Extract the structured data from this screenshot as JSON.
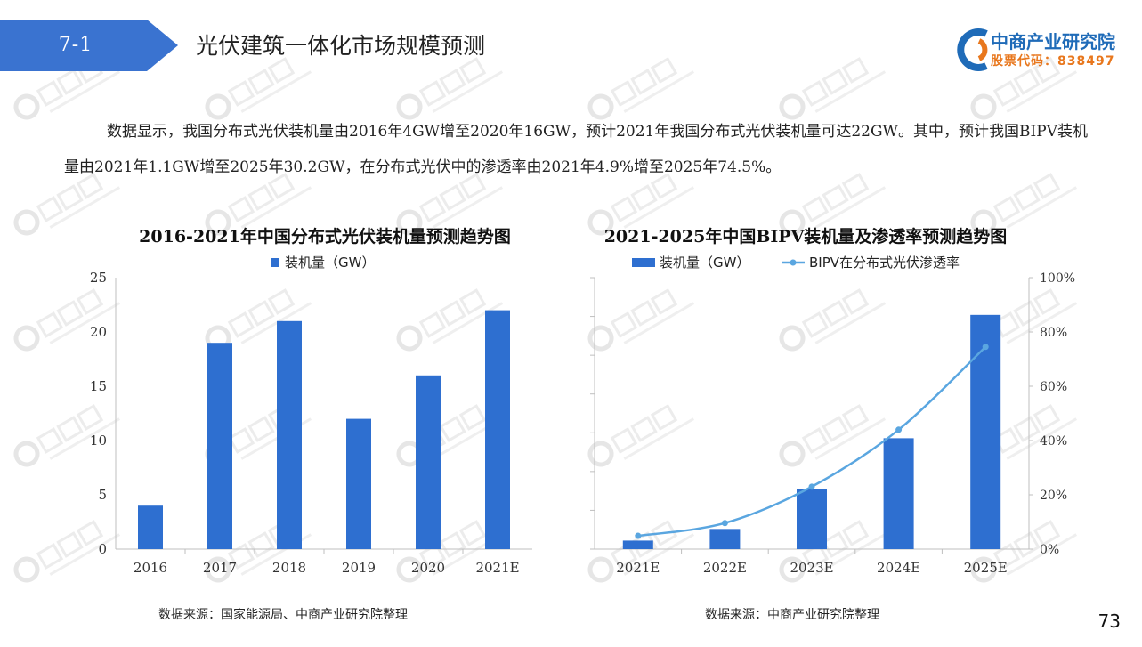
{
  "header": {
    "section_number": "7-1",
    "title": "光伏建筑一体化市场规模预测"
  },
  "logo": {
    "name": "中商产业研究院",
    "stock_code": "股票代码：838497"
  },
  "intro_text": "数据显示，我国分布式光伏装机量由2016年4GW增至2020年16GW，预计2021年我国分布式光伏装机量可达22GW。其中，预计我国BIPV装机量由2021年1.1GW增至2025年30.2GW，在分布式光伏中的渗透率由2021年4.9%增至2025年74.5%。",
  "sources": {
    "left": "数据来源：国家能源局、中商产业研究院整理",
    "right": "数据来源：中商产业研究院整理"
  },
  "page_number": "73",
  "colors": {
    "banner": "#3a73d0",
    "bar": "#2e6fd0",
    "line": "#5aa6e0",
    "logo_blue": "#1f6bb8",
    "logo_orange": "#e8771d"
  },
  "chart_data": [
    {
      "type": "bar",
      "title": "2016-2021年中国分布式光伏装机量预测趋势图",
      "categories": [
        "2016",
        "2017",
        "2018",
        "2019",
        "2020",
        "2021E"
      ],
      "series": [
        {
          "name": "装机量（GW）",
          "values": [
            4,
            19,
            21,
            12,
            16,
            22
          ]
        }
      ],
      "ylim": [
        0,
        25
      ],
      "yticks": [
        "0",
        "5",
        "10",
        "15",
        "20",
        "25"
      ],
      "grid": false,
      "legend": "top-center"
    },
    {
      "type": "bar",
      "title": "2021-2025年中国BIPV装机量及渗透率预测趋势图",
      "categories": [
        "2021E",
        "2022E",
        "2023E",
        "2024E",
        "2025E"
      ],
      "series": [
        {
          "name": "装机量（GW）",
          "type": "bar",
          "axis": "left",
          "values": [
            1.1,
            2.6,
            7.8,
            14.3,
            30.2
          ]
        },
        {
          "name": "BIPV在分布式光伏渗透率",
          "type": "line",
          "axis": "right",
          "values": [
            4.9,
            9.6,
            23.0,
            44.0,
            74.5
          ]
        }
      ],
      "ylim_left": [
        0,
        35
      ],
      "ylim_right": [
        0,
        100
      ],
      "yticks_right": [
        "0%",
        "20%",
        "40%",
        "60%",
        "80%",
        "100%"
      ],
      "grid": false,
      "legend": "top-center"
    }
  ]
}
